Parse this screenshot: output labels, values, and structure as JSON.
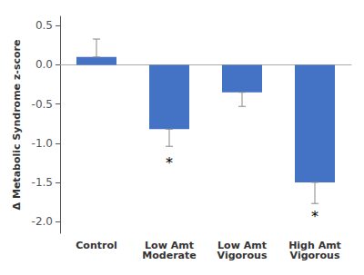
{
  "chart_data": {
    "type": "bar",
    "ylabel": "Δ Metabolic Syndrome z-score",
    "categories": [
      "Control",
      "Low Amt\nModerate",
      "Low Amt\nVigorous",
      "High Amt\nVigorous"
    ],
    "values": [
      0.1,
      -0.82,
      -0.35,
      -1.5
    ],
    "errors_upper": [
      0.23,
      0.0,
      0.0,
      0.0
    ],
    "errors_lower": [
      0.0,
      0.22,
      0.18,
      0.27
    ],
    "color": "#4472C4",
    "ylim": [
      -2.15,
      0.62
    ],
    "yticks": [
      {
        "value": -2.0,
        "label": "-2.0"
      },
      -1.5,
      {
        "value": -1.0,
        "label": "-1.0"
      },
      -0.5,
      {
        "value": 0.0,
        "label": "0.0"
      },
      0.5
    ],
    "grid": false,
    "annotations": [
      {
        "text": "*",
        "category": "Low Amt\nModerate",
        "y": -1.25
      },
      {
        "text": "*",
        "category": "High Amt\nVigorous",
        "y": -1.93
      }
    ]
  }
}
